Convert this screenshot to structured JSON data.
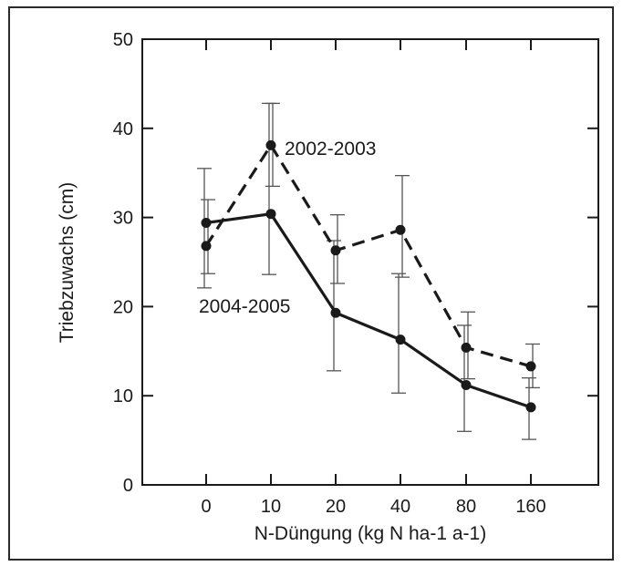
{
  "chart_data": {
    "type": "line",
    "title": "",
    "xlabel": "N-Düngung (kg N ha-1 a-1)",
    "ylabel": "Triebzuwachs (cm)",
    "categories": [
      "0",
      "10",
      "20",
      "40",
      "80",
      "160"
    ],
    "ylim": [
      0,
      50
    ],
    "yticks": [
      "0",
      "10",
      "20",
      "30",
      "40",
      "50"
    ],
    "grid": false,
    "legend": "none",
    "series": [
      {
        "name": "2002-2003",
        "line_style": "dashed",
        "color": "#1a1a1a",
        "values": [
          26.8,
          38.1,
          26.3,
          28.6,
          15.4,
          13.3
        ],
        "err_low": [
          23.7,
          33.5,
          22.6,
          23.3,
          11.9,
          10.9
        ],
        "err_high": [
          32.0,
          42.8,
          30.3,
          34.7,
          19.4,
          15.8
        ]
      },
      {
        "name": "2004-2005",
        "line_style": "solid",
        "color": "#1a1a1a",
        "values": [
          29.4,
          30.4,
          19.3,
          16.3,
          11.2,
          8.7
        ],
        "err_low": [
          22.1,
          23.6,
          12.8,
          10.3,
          6.0,
          5.1
        ],
        "err_high": [
          35.5,
          42.8,
          27.4,
          23.7,
          17.9,
          12.0
        ]
      }
    ]
  }
}
